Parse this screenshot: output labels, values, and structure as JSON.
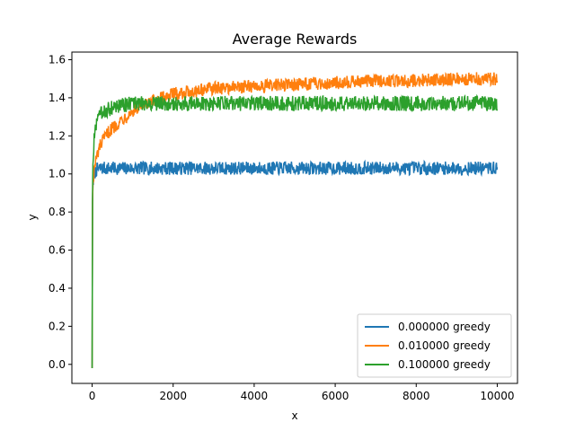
{
  "chart_data": {
    "type": "line",
    "title": "Average Rewards",
    "xlabel": "x",
    "ylabel": "y",
    "xlim": [
      -500,
      10500
    ],
    "ylim": [
      -0.1,
      1.64
    ],
    "xticks": [
      0,
      2000,
      4000,
      6000,
      8000,
      10000
    ],
    "xtick_labels": [
      "0",
      "2000",
      "4000",
      "6000",
      "8000",
      "10000"
    ],
    "yticks": [
      0.0,
      0.2,
      0.4,
      0.6,
      0.8,
      1.0,
      1.2,
      1.4,
      1.6
    ],
    "ytick_labels": [
      "0.0",
      "0.2",
      "0.4",
      "0.6",
      "0.8",
      "1.0",
      "1.2",
      "1.4",
      "1.6"
    ],
    "grid": false,
    "legend_position": "lower-right",
    "series": [
      {
        "name": "0.000000 greedy",
        "color": "#1f77b4",
        "x": [
          0,
          10,
          20,
          50,
          100,
          200,
          400,
          700,
          1000,
          1500,
          2000,
          3000,
          4000,
          5000,
          6000,
          7000,
          8000,
          9000,
          10000
        ],
        "y": [
          -0.02,
          0.85,
          0.95,
          1.0,
          1.02,
          1.03,
          1.03,
          1.03,
          1.03,
          1.03,
          1.03,
          1.03,
          1.03,
          1.03,
          1.03,
          1.03,
          1.03,
          1.03,
          1.03
        ],
        "noise": 0.035
      },
      {
        "name": "0.010000 greedy",
        "color": "#ff7f0e",
        "x": [
          0,
          10,
          20,
          50,
          100,
          200,
          400,
          700,
          1000,
          1500,
          2000,
          3000,
          4000,
          5000,
          6000,
          7000,
          8000,
          9000,
          10000
        ],
        "y": [
          -0.02,
          0.85,
          0.95,
          1.02,
          1.08,
          1.15,
          1.22,
          1.28,
          1.33,
          1.38,
          1.42,
          1.45,
          1.46,
          1.47,
          1.48,
          1.49,
          1.49,
          1.5,
          1.5
        ],
        "noise": 0.035
      },
      {
        "name": "0.100000 greedy",
        "color": "#2ca02c",
        "x": [
          0,
          10,
          20,
          50,
          100,
          200,
          400,
          700,
          1000,
          1500,
          2000,
          3000,
          4000,
          5000,
          6000,
          7000,
          8000,
          9000,
          10000
        ],
        "y": [
          -0.02,
          0.9,
          1.05,
          1.18,
          1.26,
          1.31,
          1.34,
          1.36,
          1.37,
          1.37,
          1.37,
          1.37,
          1.37,
          1.37,
          1.37,
          1.37,
          1.37,
          1.37,
          1.37
        ],
        "noise": 0.04
      }
    ]
  }
}
